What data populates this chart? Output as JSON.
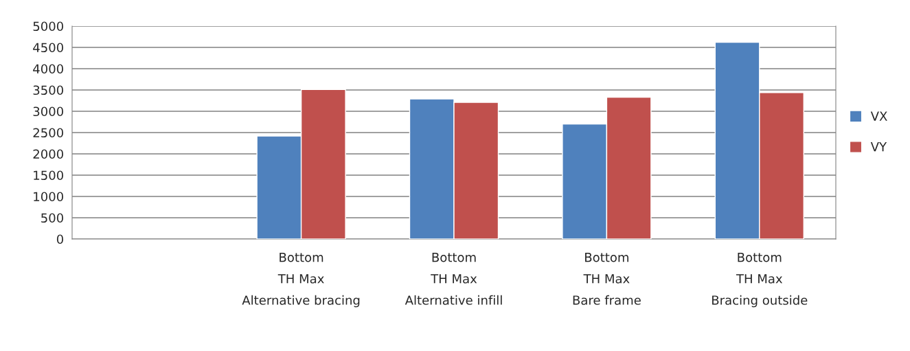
{
  "chart_data": {
    "type": "bar",
    "categories": [
      null,
      "Bottom\nTH Max\nAlternative bracing",
      "Bottom\nTH Max\nAlternative infill",
      "Bottom\nTH Max\nBare frame",
      "Bottom\nTH Max\nBracing outside"
    ],
    "series": [
      {
        "name": "VX",
        "color": "#4f81bd",
        "values": [
          null,
          2420,
          3290,
          2700,
          4620
        ]
      },
      {
        "name": "VY",
        "color": "#c0504d",
        "values": [
          null,
          3510,
          3210,
          3330,
          3440
        ]
      }
    ],
    "ylim": [
      0,
      5000
    ],
    "yticks": [
      0,
      500,
      1000,
      1500,
      2000,
      2500,
      3000,
      3500,
      4000,
      4500,
      5000
    ],
    "grid": "y",
    "legend": "right"
  }
}
